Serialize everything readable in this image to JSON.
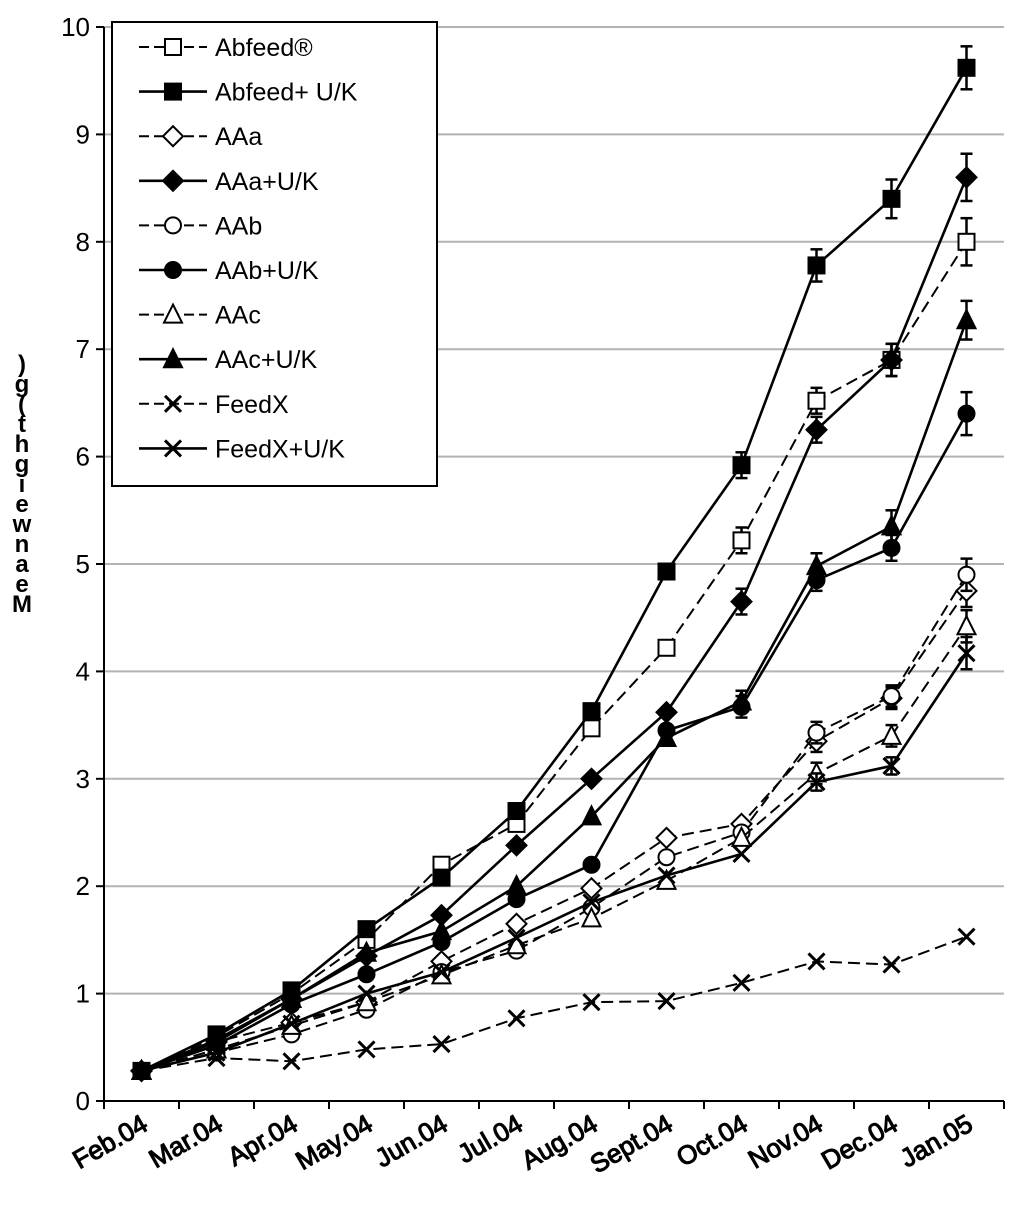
{
  "chart_data": {
    "type": "line",
    "ylabel": "Mean weight (g)",
    "ylim": [
      0,
      10
    ],
    "yticks": [
      "0",
      "1",
      "2",
      "3",
      "4",
      "5",
      "6",
      "7",
      "8",
      "9",
      "10"
    ],
    "grid": true,
    "legend_position": "top-left",
    "categories": [
      "Feb.04",
      "Mar.04",
      "Apr.04",
      "May.04",
      "Jun.04",
      "Jul.04",
      "Aug.04",
      "Sept.04",
      "Oct.04",
      "Nov.04",
      "Dec.04",
      "Jan.05"
    ],
    "series": [
      {
        "name": "Abfeed®",
        "marker": "square",
        "filled": false,
        "dashed": true,
        "values": [
          0.28,
          0.6,
          1.0,
          1.5,
          2.2,
          2.58,
          3.47,
          4.22,
          5.22,
          6.52,
          6.9,
          8.0
        ],
        "errors": [
          0,
          0,
          0,
          0,
          0,
          0,
          0,
          0,
          0.12,
          0.12,
          0.15,
          0.22
        ]
      },
      {
        "name": "Abfeed+ U/K",
        "marker": "square",
        "filled": true,
        "dashed": false,
        "values": [
          0.28,
          0.62,
          1.03,
          1.6,
          2.08,
          2.7,
          3.63,
          4.93,
          5.92,
          7.78,
          8.4,
          9.62
        ],
        "errors": [
          0,
          0,
          0,
          0,
          0,
          0,
          0,
          0,
          0.12,
          0.15,
          0.18,
          0.2
        ]
      },
      {
        "name": "AAa",
        "marker": "diamond",
        "filled": false,
        "dashed": true,
        "values": [
          0.28,
          0.55,
          0.73,
          0.92,
          1.3,
          1.65,
          1.98,
          2.45,
          2.58,
          3.35,
          3.75,
          4.75
        ],
        "errors": [
          0,
          0,
          0,
          0,
          0,
          0,
          0,
          0,
          0,
          0.1,
          0.1,
          0.15
        ]
      },
      {
        "name": "AAa+U/K",
        "marker": "diamond",
        "filled": true,
        "dashed": false,
        "values": [
          0.28,
          0.57,
          0.95,
          1.35,
          1.73,
          2.38,
          3.0,
          3.62,
          4.65,
          6.25,
          6.9,
          8.6
        ],
        "errors": [
          0,
          0,
          0,
          0,
          0,
          0,
          0,
          0,
          0.12,
          0.12,
          0.15,
          0.22
        ]
      },
      {
        "name": "AAb",
        "marker": "circle",
        "filled": false,
        "dashed": true,
        "values": [
          0.28,
          0.45,
          0.62,
          0.85,
          1.2,
          1.4,
          1.8,
          2.27,
          2.5,
          3.43,
          3.77,
          4.9
        ],
        "errors": [
          0,
          0,
          0,
          0,
          0,
          0,
          0,
          0,
          0,
          0.1,
          0.1,
          0.15
        ]
      },
      {
        "name": "AAb+U/K",
        "marker": "circle",
        "filled": true,
        "dashed": false,
        "values": [
          0.28,
          0.52,
          0.9,
          1.18,
          1.48,
          1.88,
          2.2,
          3.45,
          3.67,
          4.85,
          5.15,
          6.4
        ],
        "errors": [
          0,
          0,
          0,
          0,
          0,
          0,
          0,
          0,
          0.1,
          0.1,
          0.12,
          0.2
        ]
      },
      {
        "name": "AAc",
        "marker": "triangle",
        "filled": false,
        "dashed": true,
        "values": [
          0.28,
          0.48,
          0.7,
          0.92,
          1.17,
          1.45,
          1.7,
          2.05,
          2.45,
          3.05,
          3.4,
          4.42
        ],
        "errors": [
          0,
          0,
          0,
          0,
          0,
          0,
          0,
          0,
          0,
          0.1,
          0.1,
          0.15
        ]
      },
      {
        "name": "AAc+U/K",
        "marker": "triangle",
        "filled": true,
        "dashed": false,
        "values": [
          0.28,
          0.55,
          0.95,
          1.38,
          1.58,
          2.0,
          2.65,
          3.38,
          3.72,
          4.98,
          5.35,
          7.27
        ],
        "errors": [
          0,
          0,
          0,
          0,
          0,
          0,
          0,
          0,
          0.1,
          0.12,
          0.15,
          0.18
        ]
      },
      {
        "name": "FeedX",
        "marker": "x",
        "filled": false,
        "dashed": true,
        "values": [
          0.28,
          0.4,
          0.37,
          0.48,
          0.53,
          0.77,
          0.92,
          0.93,
          1.1,
          1.3,
          1.27,
          1.53
        ],
        "errors": [
          0,
          0,
          0,
          0,
          0,
          0,
          0,
          0,
          0,
          0,
          0,
          0
        ]
      },
      {
        "name": "FeedX+U/K",
        "marker": "x",
        "filled": false,
        "dashed": false,
        "values": [
          0.28,
          0.45,
          0.72,
          1.0,
          1.2,
          1.52,
          1.85,
          2.1,
          2.3,
          2.97,
          3.12,
          4.17
        ],
        "errors": [
          0,
          0,
          0,
          0,
          0,
          0,
          0,
          0,
          0,
          0.08,
          0.08,
          0.15
        ]
      }
    ]
  }
}
